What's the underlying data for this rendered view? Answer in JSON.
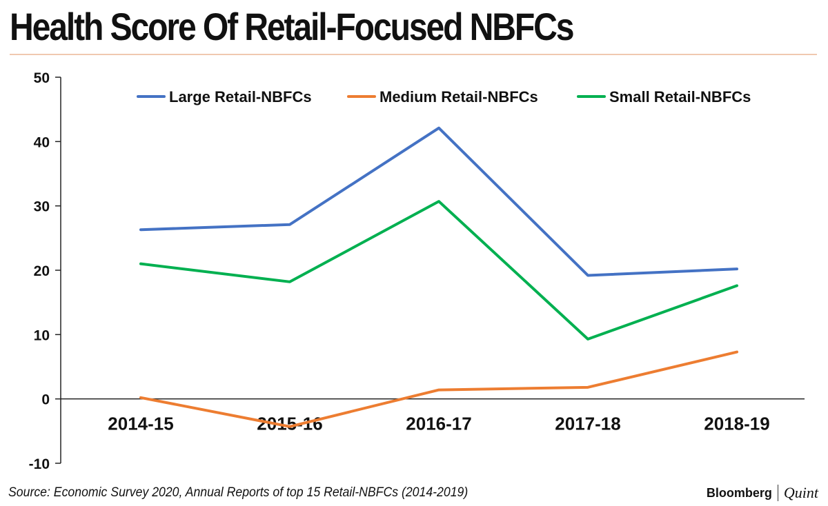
{
  "header": {
    "title": "Health Score Of Retail-Focused NBFCs"
  },
  "footer": {
    "source": "Source: Economic Survey 2020, Annual Reports of top 15 Retail-NBFCs (2014-2019)",
    "brand_primary": "Bloomberg",
    "brand_secondary": "Quint"
  },
  "chart_data": {
    "type": "line",
    "title": "Health Score Of Retail-Focused NBFCs",
    "xlabel": "",
    "ylabel": "",
    "categories": [
      "2014-15",
      "2015-16",
      "2016-17",
      "2017-18",
      "2018-19"
    ],
    "ylim": [
      -10,
      50
    ],
    "yticks": [
      -10,
      0,
      10,
      20,
      30,
      40,
      50
    ],
    "grid": false,
    "legend_position": "top",
    "series": [
      {
        "name": "Large Retail-NBFCs",
        "color": "#4472c4",
        "values": [
          26.3,
          27.1,
          42.1,
          19.2,
          20.2
        ]
      },
      {
        "name": "Medium Retail-NBFCs",
        "color": "#ed7d31",
        "values": [
          0.2,
          -4.3,
          1.4,
          1.8,
          7.3
        ]
      },
      {
        "name": "Small Retail-NBFCs",
        "color": "#00b050",
        "values": [
          21.0,
          18.2,
          30.7,
          9.3,
          17.6
        ]
      }
    ]
  }
}
